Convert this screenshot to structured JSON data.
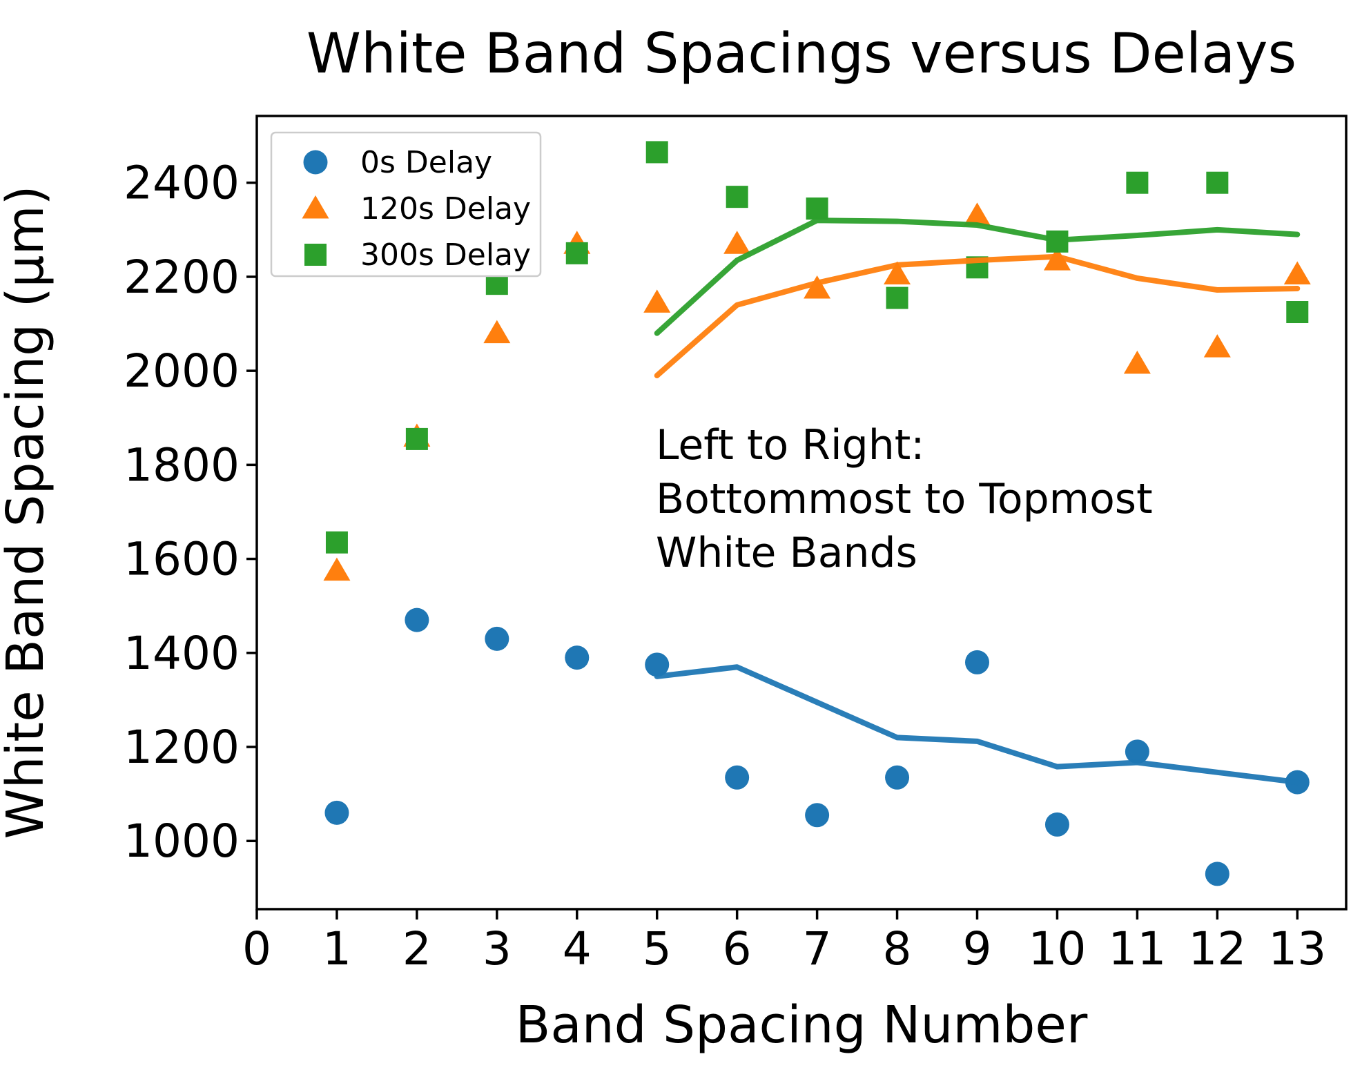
{
  "chart_data": {
    "type": "scatter",
    "title": "White Band Spacings versus Delays",
    "xlabel": "Band Spacing Number",
    "ylabel": "White Band Spacing (μm)",
    "annotation": {
      "lines": [
        "Left to Right:",
        "Bottommost to Topmost",
        "White Bands"
      ]
    },
    "x": [
      1,
      2,
      3,
      4,
      5,
      6,
      7,
      8,
      9,
      10,
      11,
      12,
      13
    ],
    "series": [
      {
        "name": "0s Delay",
        "marker": "circle",
        "color": "#1f77b4",
        "values": [
          1060,
          1470,
          1430,
          1390,
          1375,
          1135,
          1055,
          1135,
          1380,
          1035,
          1190,
          930,
          1125
        ],
        "trend_x": [
          5,
          6,
          7,
          8,
          9,
          10,
          11,
          12,
          13
        ],
        "trend_values": [
          1350,
          1370,
          1295,
          1220,
          1212,
          1158,
          1167,
          1146,
          1125
        ]
      },
      {
        "name": "120s Delay",
        "marker": "triangle",
        "color": "#ff7f0e",
        "values": [
          1575,
          1860,
          2080,
          2270,
          2145,
          2270,
          2175,
          2205,
          2330,
          2235,
          2015,
          2050,
          2205
        ],
        "trend_x": [
          5,
          6,
          7,
          8,
          9,
          10,
          11,
          12,
          13
        ],
        "trend_values": [
          1990,
          2140,
          2187,
          2225,
          2235,
          2243,
          2197,
          2172,
          2175
        ]
      },
      {
        "name": "300s Delay",
        "marker": "square",
        "color": "#2ca02c",
        "values": [
          1635,
          1855,
          2185,
          2250,
          2465,
          2370,
          2345,
          2155,
          2220,
          2275,
          2400,
          2400,
          2125
        ],
        "trend_x": [
          5,
          6,
          7,
          8,
          9,
          10,
          11,
          12,
          13
        ],
        "trend_values": [
          2080,
          2235,
          2320,
          2318,
          2310,
          2278,
          2288,
          2300,
          2290
        ]
      }
    ],
    "xlim": [
      0,
      13.61
    ],
    "ylim": [
      855,
      2542
    ],
    "xticks": [
      0,
      1,
      2,
      3,
      4,
      5,
      6,
      7,
      8,
      9,
      10,
      11,
      12,
      13
    ],
    "yticks": [
      1000,
      1200,
      1400,
      1600,
      1800,
      2000,
      2200,
      2400
    ],
    "grid": false,
    "legend_position": "upper left"
  }
}
